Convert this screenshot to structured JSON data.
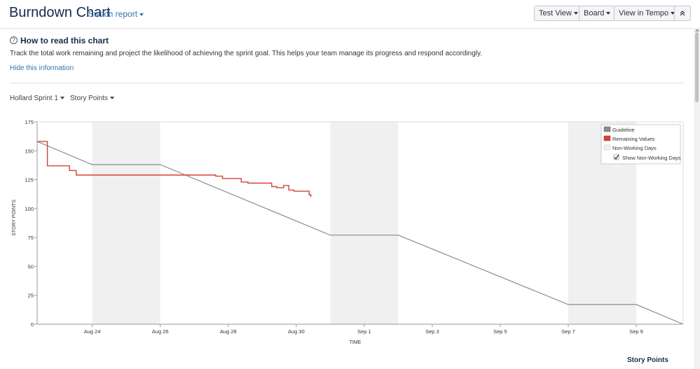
{
  "header": {
    "title": "Burndown Chart",
    "switch_report": "Switch report",
    "buttons": [
      {
        "label": "Test View"
      },
      {
        "label": "Board"
      },
      {
        "label": "View in Tempo"
      }
    ],
    "collapse_icon": "chevron-double-up-icon"
  },
  "info": {
    "heading": "How to read this chart",
    "description": "Track the total work remaining and project the likelihood of achieving the sprint goal. This helps your team manage its progress and respond accordingly.",
    "hide_link": "Hide this information",
    "icon": "question-circle-icon"
  },
  "filters": {
    "sprint": "Hollard Sprint 1",
    "estimation": "Story Points"
  },
  "legend": {
    "guideline": "Guideline",
    "remaining": "Remaining Values",
    "nonworking": "Non-Working Days",
    "show_nonworking": "Show Non-Working Days",
    "show_nonworking_checked": true
  },
  "footer": {
    "story_points_label": "Story Points"
  },
  "colors": {
    "guideline": "#8c8c8c",
    "remaining": "#d04437",
    "nonworking": "#f0f0f0",
    "link": "#3572b0"
  },
  "chart_data": {
    "type": "line",
    "xlabel": "TIME",
    "ylabel": "STORY POINTS",
    "ylim": [
      0,
      175
    ],
    "yticks": [
      0,
      25,
      50,
      75,
      100,
      125,
      150,
      175
    ],
    "xticks": [
      "Aug 24",
      "Aug 26",
      "Aug 28",
      "Aug 30",
      "Sep 1",
      "Sep 3",
      "Sep 5",
      "Sep 7",
      "Sep 9"
    ],
    "x_tick_days": [
      1.62,
      3.62,
      5.62,
      7.62,
      9.62,
      11.62,
      13.62,
      15.62,
      17.62
    ],
    "xlim_days": [
      0,
      19.0
    ],
    "nonworking_periods": [
      [
        1.62,
        3.62
      ],
      [
        8.62,
        10.62
      ],
      [
        15.62,
        17.62
      ]
    ],
    "series": [
      {
        "name": "Guideline",
        "color": "#8c8c8c",
        "points": [
          [
            0,
            158
          ],
          [
            1.62,
            138
          ],
          [
            3.62,
            138
          ],
          [
            8.62,
            77
          ],
          [
            10.62,
            77
          ],
          [
            15.62,
            17
          ],
          [
            17.62,
            17
          ],
          [
            19.0,
            0
          ]
        ]
      },
      {
        "name": "Remaining Values",
        "color": "#d04437",
        "step": true,
        "points": [
          [
            0,
            158
          ],
          [
            0.3,
            158
          ],
          [
            0.3,
            137
          ],
          [
            0.95,
            137
          ],
          [
            0.95,
            133
          ],
          [
            1.15,
            133
          ],
          [
            1.15,
            129
          ],
          [
            5.25,
            129
          ],
          [
            5.25,
            128
          ],
          [
            5.45,
            128
          ],
          [
            5.45,
            126
          ],
          [
            6.0,
            126
          ],
          [
            6.0,
            123
          ],
          [
            6.2,
            123
          ],
          [
            6.2,
            122
          ],
          [
            6.9,
            122
          ],
          [
            6.9,
            119
          ],
          [
            7.05,
            119
          ],
          [
            7.05,
            118
          ],
          [
            7.25,
            118
          ],
          [
            7.25,
            120
          ],
          [
            7.4,
            120
          ],
          [
            7.4,
            116
          ],
          [
            7.55,
            116
          ],
          [
            7.55,
            115
          ],
          [
            8.0,
            115
          ],
          [
            8.0,
            112
          ],
          [
            8.05,
            112
          ],
          [
            8.05,
            110
          ]
        ]
      }
    ]
  }
}
